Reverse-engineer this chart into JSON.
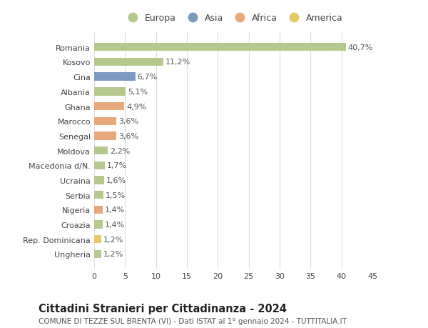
{
  "categories": [
    "Ungheria",
    "Rep. Dominicana",
    "Croazia",
    "Nigeria",
    "Serbia",
    "Ucraina",
    "Macedonia d/N.",
    "Moldova",
    "Senegal",
    "Marocco",
    "Ghana",
    "Albania",
    "Cina",
    "Kosovo",
    "Romania"
  ],
  "values": [
    1.2,
    1.2,
    1.4,
    1.4,
    1.5,
    1.6,
    1.7,
    2.2,
    3.6,
    3.6,
    4.9,
    5.1,
    6.7,
    11.2,
    40.7
  ],
  "labels": [
    "1,2%",
    "1,2%",
    "1,4%",
    "1,4%",
    "1,5%",
    "1,6%",
    "1,7%",
    "2,2%",
    "3,6%",
    "3,6%",
    "4,9%",
    "5,1%",
    "6,7%",
    "11,2%",
    "40,7%"
  ],
  "colors": [
    "#b5c98e",
    "#e8c96a",
    "#b5c98e",
    "#e8a87c",
    "#b5c98e",
    "#b5c98e",
    "#b5c98e",
    "#b5c98e",
    "#e8a87c",
    "#e8a87c",
    "#e8a87c",
    "#b5c98e",
    "#7a9bbf",
    "#b5c98e",
    "#b5c98e"
  ],
  "legend_labels": [
    "Europa",
    "Asia",
    "Africa",
    "America"
  ],
  "legend_colors": [
    "#b5c98e",
    "#7a9bbf",
    "#e8a87c",
    "#e8c96a"
  ],
  "title": "Cittadini Stranieri per Cittadinanza - 2024",
  "subtitle": "COMUNE DI TEZZE SUL BRENTA (VI) - Dati ISTAT al 1° gennaio 2024 - TUTTITALIA.IT",
  "xlim": [
    0,
    45
  ],
  "xticks": [
    0,
    5,
    10,
    15,
    20,
    25,
    30,
    35,
    40,
    45
  ],
  "background_color": "#ffffff",
  "grid_color": "#dddddd",
  "bar_height": 0.55,
  "label_fontsize": 8,
  "title_fontsize": 10.5,
  "subtitle_fontsize": 7.5,
  "ytick_fontsize": 8,
  "xtick_fontsize": 8,
  "legend_fontsize": 9
}
